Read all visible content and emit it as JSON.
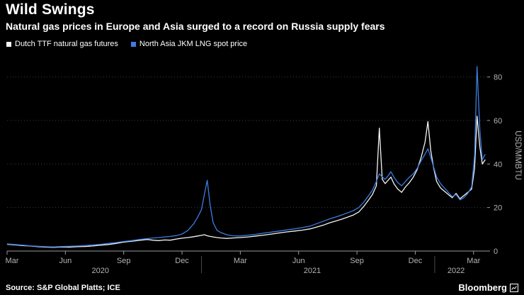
{
  "header": {
    "title": "Wild Swings",
    "subtitle": "Natural gas prices in Europe and Asia surged to a record on Russia supply fears"
  },
  "legend": [
    {
      "label": "Dutch TTF natural gas futures",
      "color": "#f5f5f5"
    },
    {
      "label": "North Asia JKM LNG spot price",
      "color": "#3d7de0"
    }
  ],
  "footer": {
    "source": "Source: S&P Global Platts; ICE",
    "brand": "Bloomberg"
  },
  "chart_data": {
    "type": "line",
    "title": "Wild Swings",
    "subtitle": "Natural gas prices in Europe and Asia surged to a record on Russia supply fears",
    "ylabel": "USD/MMBTU",
    "xlabel": "",
    "x_unit": "months since 2020-03-01",
    "xlim": [
      0,
      24.7
    ],
    "ylim": [
      0,
      88
    ],
    "y_ticks": [
      0,
      20,
      40,
      60,
      80
    ],
    "grid": "horizontal-dotted",
    "legend_position": "top-left",
    "x_ticks": [
      {
        "pos": 0,
        "label": "Mar"
      },
      {
        "pos": 3,
        "label": "Jun"
      },
      {
        "pos": 6,
        "label": "Sep"
      },
      {
        "pos": 9,
        "label": "Dec"
      },
      {
        "pos": 12,
        "label": "Mar"
      },
      {
        "pos": 15,
        "label": "Jun"
      },
      {
        "pos": 18,
        "label": "Sep"
      },
      {
        "pos": 21,
        "label": "Dec"
      },
      {
        "pos": 24,
        "label": "Mar"
      }
    ],
    "year_labels": [
      {
        "pos": 4.8,
        "label": "2020"
      },
      {
        "pos": 15.7,
        "label": "2021"
      },
      {
        "pos": 23.1,
        "label": "2022"
      }
    ],
    "year_boundaries": [
      10,
      22
    ],
    "x": [
      0,
      0.4,
      0.8,
      1.2,
      1.6,
      2.0,
      2.4,
      2.8,
      3.2,
      3.6,
      4.0,
      4.4,
      4.8,
      5.2,
      5.6,
      6.0,
      6.4,
      6.8,
      7.2,
      7.5,
      7.8,
      8.1,
      8.4,
      8.7,
      9.0,
      9.3,
      9.6,
      9.8,
      10.0,
      10.15,
      10.3,
      10.45,
      10.6,
      10.8,
      11.0,
      11.3,
      11.6,
      12.0,
      12.4,
      12.8,
      13.2,
      13.6,
      14.0,
      14.4,
      14.8,
      15.2,
      15.6,
      16.0,
      16.3,
      16.6,
      16.9,
      17.2,
      17.5,
      17.8,
      18.1,
      18.35,
      18.6,
      18.8,
      19.0,
      19.15,
      19.3,
      19.45,
      19.6,
      19.75,
      19.9,
      20.1,
      20.3,
      20.5,
      20.7,
      20.9,
      21.1,
      21.3,
      21.5,
      21.65,
      21.8,
      21.95,
      22.1,
      22.3,
      22.5,
      22.7,
      22.9,
      23.1,
      23.3,
      23.5,
      23.7,
      23.9,
      24.05,
      24.18,
      24.32,
      24.45,
      24.6
    ],
    "series": [
      {
        "name": "Dutch TTF natural gas futures",
        "color": "#f5f5f5",
        "values": [
          3.1,
          2.8,
          2.5,
          2.3,
          2.0,
          1.8,
          1.7,
          1.9,
          1.8,
          2.0,
          2.1,
          2.3,
          2.7,
          3.0,
          3.5,
          4.1,
          4.5,
          4.9,
          5.3,
          5.0,
          4.8,
          5.1,
          5.0,
          5.5,
          5.9,
          6.2,
          6.6,
          6.9,
          7.2,
          7.5,
          7.0,
          6.7,
          6.5,
          6.2,
          6.0,
          5.8,
          6.0,
          6.2,
          6.5,
          6.9,
          7.3,
          7.8,
          8.3,
          8.8,
          9.2,
          9.6,
          10.2,
          11.2,
          12.0,
          13.0,
          13.8,
          14.6,
          15.5,
          16.5,
          18.0,
          20.5,
          23.5,
          26.0,
          30.0,
          56.5,
          33.0,
          31.0,
          32.5,
          34.0,
          31.0,
          28.5,
          27.0,
          29.5,
          31.5,
          34.0,
          37.5,
          43.0,
          50.0,
          59.5,
          46.0,
          38.0,
          32.0,
          29.0,
          27.5,
          26.0,
          24.5,
          26.5,
          24.0,
          25.5,
          27.0,
          28.5,
          38.0,
          62.0,
          48.0,
          40.0,
          42.0
        ]
      },
      {
        "name": "North Asia JKM LNG spot price",
        "color": "#3d7de0",
        "values": [
          3.3,
          3.0,
          2.7,
          2.4,
          2.2,
          2.0,
          1.9,
          2.1,
          2.2,
          2.3,
          2.5,
          2.8,
          3.1,
          3.5,
          3.9,
          4.4,
          4.8,
          5.3,
          5.7,
          6.0,
          6.2,
          6.5,
          6.7,
          7.1,
          7.8,
          9.5,
          12.5,
          15.5,
          19.0,
          26.0,
          32.5,
          21.0,
          13.0,
          9.5,
          8.5,
          7.5,
          7.0,
          6.9,
          7.3,
          7.7,
          8.2,
          8.7,
          9.2,
          9.7,
          10.2,
          10.8,
          11.5,
          12.8,
          13.8,
          14.8,
          15.6,
          16.5,
          17.5,
          18.5,
          20.0,
          22.5,
          25.5,
          28.0,
          32.0,
          35.5,
          34.0,
          33.0,
          34.5,
          36.5,
          34.0,
          31.5,
          30.0,
          32.0,
          34.0,
          35.5,
          38.0,
          41.5,
          44.5,
          47.0,
          43.0,
          38.5,
          34.0,
          31.0,
          29.0,
          27.0,
          25.0,
          26.0,
          23.5,
          24.5,
          26.5,
          29.5,
          44.0,
          84.8,
          56.0,
          42.0,
          44.5
        ]
      }
    ],
    "colors": {
      "background": "#000000",
      "grid": "#3c3c3c",
      "axis": "#9a9a9a",
      "tick_label": "#b3b3b3"
    }
  }
}
